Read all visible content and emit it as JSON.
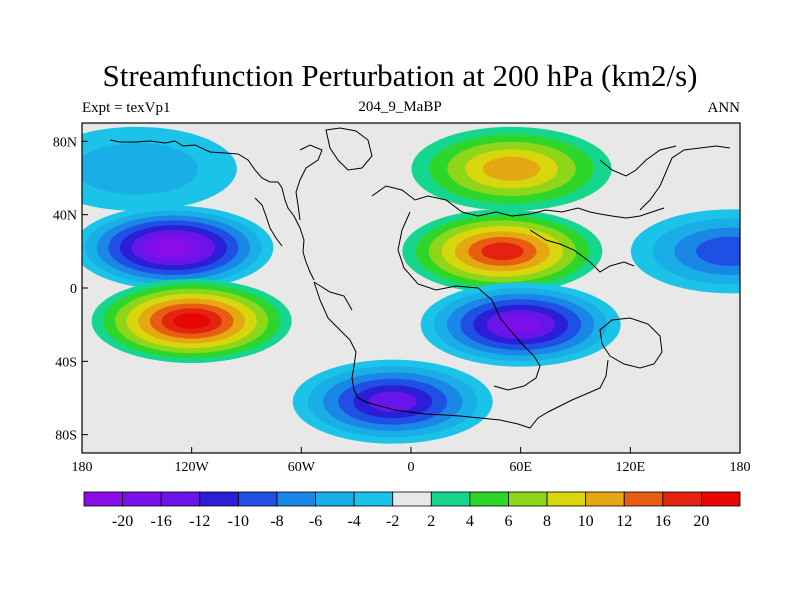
{
  "chart_data": {
    "type": "heatmap",
    "title": "Streamfunction Perturbation at 200 hPa (km2/s)",
    "left_label": "Expt = texVp1",
    "center_label": "204_9_MaBP",
    "right_label": "ANN",
    "xlabel": "",
    "ylabel": "",
    "xlim": [
      -180,
      180
    ],
    "ylim": [
      -90,
      90
    ],
    "x_ticks": [
      {
        "value": -180,
        "label": "180"
      },
      {
        "value": -120,
        "label": "120W"
      },
      {
        "value": -60,
        "label": "60W"
      },
      {
        "value": 0,
        "label": "0"
      },
      {
        "value": 60,
        "label": "60E"
      },
      {
        "value": 120,
        "label": "120E"
      },
      {
        "value": 180,
        "label": "180"
      }
    ],
    "y_ticks": [
      {
        "value": 80,
        "label": "80N"
      },
      {
        "value": 40,
        "label": "40N"
      },
      {
        "value": 0,
        "label": "0"
      },
      {
        "value": -40,
        "label": "40S"
      },
      {
        "value": -80,
        "label": "80S"
      }
    ],
    "contour_levels": [
      -20,
      -16,
      -12,
      -10,
      -8,
      -6,
      -4,
      -2,
      2,
      4,
      6,
      8,
      10,
      12,
      16,
      20
    ],
    "level_labels": [
      "-20",
      "-16",
      "-12",
      "-10",
      "-8",
      "-6",
      "-4",
      "-2",
      "2",
      "4",
      "6",
      "8",
      "10",
      "12",
      "16",
      "20"
    ],
    "colors": [
      "#8a0ce6",
      "#7b10ea",
      "#6914e8",
      "#2a1ed6",
      "#1f4fe4",
      "#1a86e6",
      "#19aee6",
      "#1cc3e8",
      "#e8e8e8",
      "#16d68e",
      "#2fd62a",
      "#8ed61a",
      "#d8d60c",
      "#e6a812",
      "#e85d0f",
      "#e32310",
      "#e60606"
    ],
    "anomalies": [
      {
        "name": "N Pacific trough",
        "lon": -130,
        "lat": 22,
        "peak": -21
      },
      {
        "name": "S Pacific ridge",
        "lon": -120,
        "lat": -18,
        "peak": 21
      },
      {
        "name": "N Africa ridge",
        "lon": 50,
        "lat": 20,
        "peak": 19
      },
      {
        "name": "S Indian trough",
        "lon": 60,
        "lat": -20,
        "peak": -19
      },
      {
        "name": "Arctic ridge",
        "lon": 55,
        "lat": 65,
        "peak": 10
      },
      {
        "name": "S Atlantic trough",
        "lon": -10,
        "lat": -62,
        "peak": -15
      },
      {
        "name": "N Pacific high-lat trough",
        "lon": -150,
        "lat": 65,
        "peak": -5
      },
      {
        "name": "Date-line trough",
        "lon": 175,
        "lat": 20,
        "peak": -9
      }
    ]
  }
}
